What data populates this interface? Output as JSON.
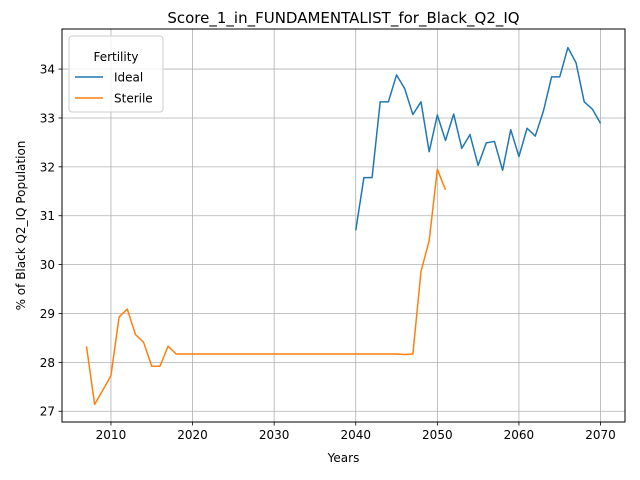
{
  "chart_data": {
    "type": "line",
    "title": "Score_1_in_FUNDAMENTALIST_for_Black_Q2_IQ",
    "xlabel": "Years",
    "ylabel": "% of Black Q2_IQ Population",
    "xlim": [
      2004,
      2073
    ],
    "ylim": [
      26.78,
      34.82
    ],
    "xticks": [
      2010,
      2020,
      2030,
      2040,
      2050,
      2060,
      2070
    ],
    "yticks": [
      27,
      28,
      29,
      30,
      31,
      32,
      33,
      34
    ],
    "grid": true,
    "legend": {
      "title": "Fertility",
      "placement": "top-left"
    },
    "series": [
      {
        "name": "Ideal",
        "color": "#1f77b4",
        "x": [
          2040,
          2041,
          2042,
          2043,
          2044,
          2045,
          2046,
          2047,
          2048,
          2049,
          2050,
          2051,
          2052,
          2053,
          2054,
          2055,
          2056,
          2057,
          2058,
          2059,
          2060,
          2061,
          2062,
          2063,
          2064,
          2065,
          2066,
          2067,
          2068,
          2069,
          2070
        ],
        "values": [
          30.7,
          31.78,
          31.78,
          33.33,
          33.33,
          33.88,
          33.6,
          33.07,
          33.33,
          32.31,
          33.06,
          32.54,
          33.08,
          32.38,
          32.66,
          32.03,
          32.49,
          32.52,
          31.93,
          32.76,
          32.21,
          32.79,
          32.63,
          33.14,
          33.84,
          33.84,
          34.44,
          34.13,
          33.33,
          33.18,
          32.89
        ]
      },
      {
        "name": "Sterile",
        "color": "#ff7f0e",
        "x": [
          2007,
          2008,
          2009,
          2010,
          2011,
          2012,
          2013,
          2014,
          2015,
          2016,
          2017,
          2018,
          2019,
          2020,
          2025,
          2030,
          2035,
          2040,
          2045,
          2046,
          2047,
          2048,
          2049,
          2050,
          2051
        ],
        "values": [
          28.33,
          27.14,
          27.43,
          27.73,
          28.93,
          29.09,
          28.57,
          28.41,
          27.92,
          27.92,
          28.33,
          28.17,
          28.17,
          28.17,
          28.17,
          28.17,
          28.17,
          28.17,
          28.17,
          28.16,
          28.17,
          29.86,
          30.49,
          31.95,
          31.53
        ]
      }
    ]
  }
}
